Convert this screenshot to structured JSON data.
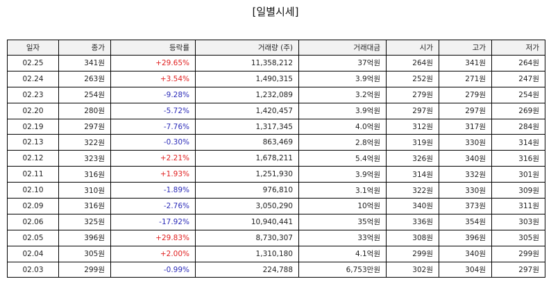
{
  "title": "[일별시세]",
  "colors": {
    "up": "#e02020",
    "down": "#2a2ab8"
  },
  "columns": [
    "일자",
    "종가",
    "등락률",
    "거래량 (주)",
    "거래대금",
    "시가",
    "고가",
    "저가"
  ],
  "rows": [
    {
      "date": "02.25",
      "close": "341원",
      "change": "+29.65%",
      "dir": "up",
      "volume": "11,358,212",
      "amount": "37억원",
      "open": "264원",
      "high": "341원",
      "low": "264원"
    },
    {
      "date": "02.24",
      "close": "263원",
      "change": "+3.54%",
      "dir": "up",
      "volume": "1,490,315",
      "amount": "3.9억원",
      "open": "252원",
      "high": "271원",
      "low": "247원"
    },
    {
      "date": "02.23",
      "close": "254원",
      "change": "-9.28%",
      "dir": "down",
      "volume": "1,232,089",
      "amount": "3.2억원",
      "open": "279원",
      "high": "279원",
      "low": "254원"
    },
    {
      "date": "02.20",
      "close": "280원",
      "change": "-5.72%",
      "dir": "down",
      "volume": "1,420,457",
      "amount": "3.9억원",
      "open": "297원",
      "high": "297원",
      "low": "269원"
    },
    {
      "date": "02.19",
      "close": "297원",
      "change": "-7.76%",
      "dir": "down",
      "volume": "1,317,345",
      "amount": "4.0억원",
      "open": "312원",
      "high": "317원",
      "low": "284원"
    },
    {
      "date": "02.13",
      "close": "322원",
      "change": "-0.30%",
      "dir": "down",
      "volume": "863,469",
      "amount": "2.8억원",
      "open": "319원",
      "high": "330원",
      "low": "314원"
    },
    {
      "date": "02.12",
      "close": "323원",
      "change": "+2.21%",
      "dir": "up",
      "volume": "1,678,211",
      "amount": "5.4억원",
      "open": "326원",
      "high": "340원",
      "low": "316원"
    },
    {
      "date": "02.11",
      "close": "316원",
      "change": "+1.93%",
      "dir": "up",
      "volume": "1,251,930",
      "amount": "3.9억원",
      "open": "314원",
      "high": "332원",
      "low": "301원"
    },
    {
      "date": "02.10",
      "close": "310원",
      "change": "-1.89%",
      "dir": "down",
      "volume": "976,810",
      "amount": "3.1억원",
      "open": "322원",
      "high": "330원",
      "low": "309원"
    },
    {
      "date": "02.09",
      "close": "316원",
      "change": "-2.76%",
      "dir": "down",
      "volume": "3,050,290",
      "amount": "10억원",
      "open": "340원",
      "high": "373원",
      "low": "311원"
    },
    {
      "date": "02.06",
      "close": "325원",
      "change": "-17.92%",
      "dir": "down",
      "volume": "10,940,441",
      "amount": "35억원",
      "open": "336원",
      "high": "354원",
      "low": "303원"
    },
    {
      "date": "02.05",
      "close": "396원",
      "change": "+29.83%",
      "dir": "up",
      "volume": "8,730,307",
      "amount": "33억원",
      "open": "308원",
      "high": "396원",
      "low": "305원"
    },
    {
      "date": "02.04",
      "close": "305원",
      "change": "+2.00%",
      "dir": "up",
      "volume": "1,310,180",
      "amount": "4.1억원",
      "open": "299원",
      "high": "340원",
      "low": "299원"
    },
    {
      "date": "02.03",
      "close": "299원",
      "change": "-0.99%",
      "dir": "down",
      "volume": "224,788",
      "amount": "6,753만원",
      "open": "302원",
      "high": "304원",
      "low": "297원"
    }
  ]
}
